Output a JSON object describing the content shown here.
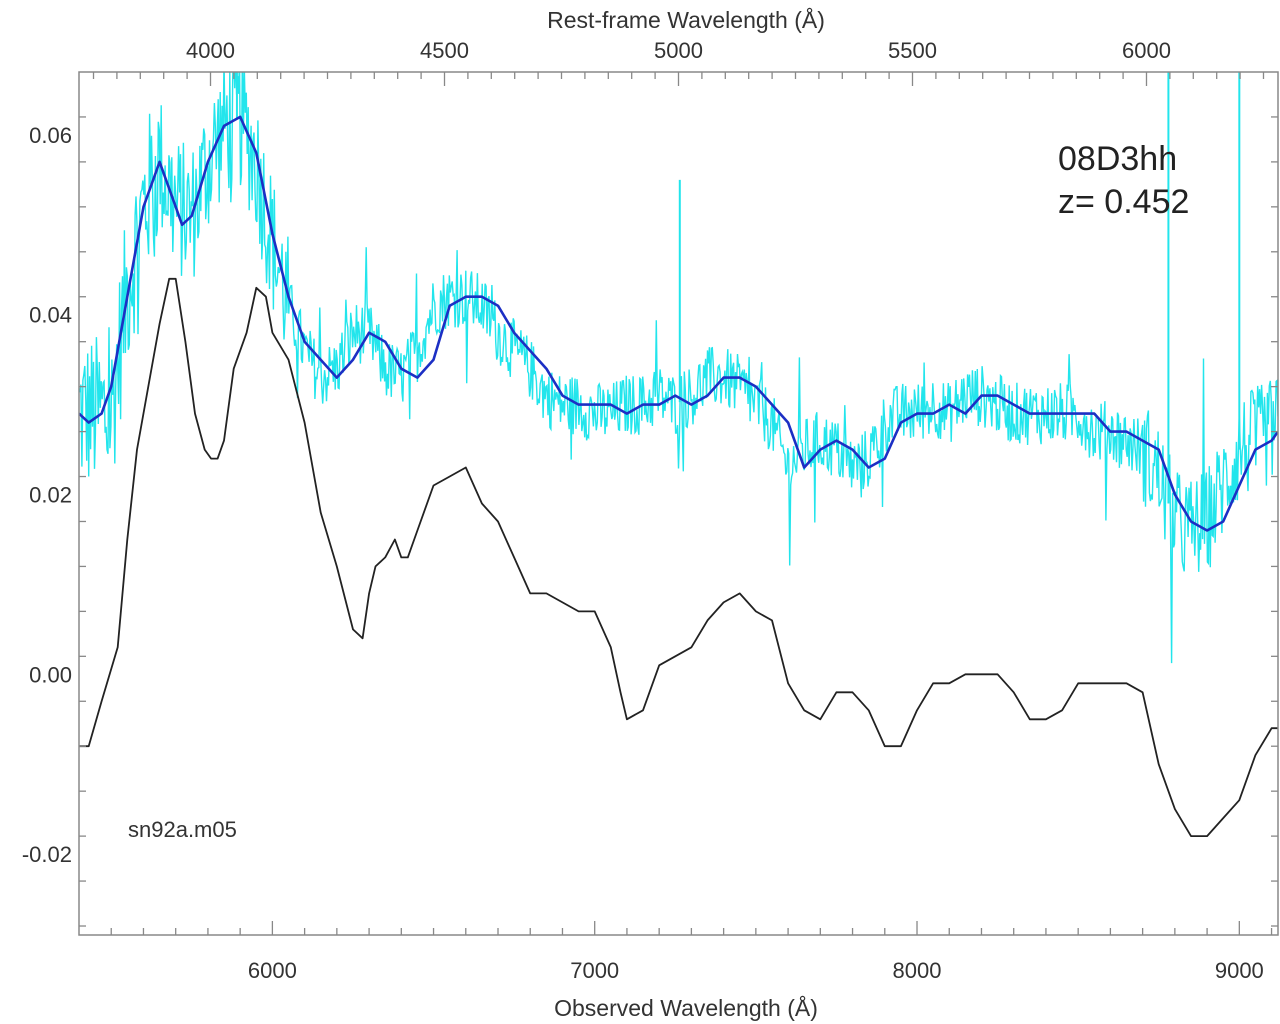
{
  "chart_data": {
    "type": "line",
    "title": "",
    "xlabel": "Observed Wavelength (Å)",
    "x2label": "Rest-frame Wavelength (Å)",
    "ylabel": "",
    "xlim": [
      5400,
      9120
    ],
    "ylim": [
      -0.029,
      0.067
    ],
    "x_ticks": [
      6000,
      7000,
      8000,
      9000
    ],
    "x_tick_labels": [
      "6000",
      "7000",
      "8000",
      "9000"
    ],
    "x2_ticks": [
      4000,
      4500,
      5000,
      5500,
      6000
    ],
    "x2_tick_labels": [
      "4000",
      "4500",
      "5000",
      "5500",
      "6000"
    ],
    "y_ticks": [
      0.06,
      0.04,
      0.02,
      0.0,
      -0.02
    ],
    "y_tick_labels": [
      "0.06",
      "0.04",
      "0.02",
      "0.00",
      "-0.02"
    ],
    "redshift": 0.452,
    "annotations": {
      "object": "08D3hh",
      "redshift_text": "z= 0.452",
      "template": "sn92a.m05"
    },
    "colors": {
      "raw": "#22e5ec",
      "smoothed": "#1c2fc4",
      "template": "#222222",
      "axis": "#888888"
    },
    "series": [
      {
        "role": "raw-spectrum",
        "x": [
          5400,
          5500,
          5550,
          5600,
          5650,
          5700,
          5750,
          5800,
          5850,
          5900,
          5950,
          6000,
          6050,
          6100,
          6150,
          6200,
          6250,
          6300,
          6350,
          6400,
          6450,
          6500,
          6550,
          6600,
          6650,
          6700,
          6750,
          6800,
          6850,
          6900,
          6950,
          7000,
          7050,
          7100,
          7150,
          7200,
          7250,
          7300,
          7350,
          7400,
          7450,
          7500,
          7550,
          7600,
          7650,
          7700,
          7750,
          7800,
          7850,
          7900,
          7950,
          8000,
          8050,
          8100,
          8150,
          8200,
          8250,
          8300,
          8350,
          8400,
          8450,
          8500,
          8550,
          8600,
          8650,
          8700,
          8750,
          8800,
          8850,
          8900,
          8950,
          9000,
          9050,
          9100,
          9120
        ],
        "y": [
          0.029,
          0.029,
          0.043,
          0.052,
          0.057,
          0.052,
          0.051,
          0.057,
          0.061,
          0.062,
          0.057,
          0.048,
          0.041,
          0.036,
          0.033,
          0.034,
          0.038,
          0.038,
          0.034,
          0.033,
          0.036,
          0.041,
          0.042,
          0.042,
          0.041,
          0.038,
          0.036,
          0.034,
          0.031,
          0.03,
          0.03,
          0.029,
          0.029,
          0.03,
          0.03,
          0.031,
          0.03,
          0.031,
          0.033,
          0.033,
          0.032,
          0.03,
          0.028,
          0.023,
          0.025,
          0.026,
          0.025,
          0.023,
          0.024,
          0.028,
          0.029,
          0.029,
          0.03,
          0.029,
          0.031,
          0.031,
          0.03,
          0.029,
          0.029,
          0.029,
          0.029,
          0.029,
          0.027,
          0.027,
          0.026,
          0.025,
          0.022,
          0.017,
          0.016,
          0.017,
          0.021,
          0.025,
          0.026,
          0.027,
          0.028
        ]
      },
      {
        "role": "smoothed-spectrum",
        "x": [
          5400,
          5430,
          5470,
          5500,
          5550,
          5600,
          5650,
          5700,
          5720,
          5750,
          5800,
          5850,
          5900,
          5950,
          6000,
          6050,
          6100,
          6150,
          6200,
          6250,
          6300,
          6350,
          6400,
          6450,
          6500,
          6550,
          6600,
          6650,
          6700,
          6750,
          6800,
          6850,
          6900,
          6950,
          7000,
          7050,
          7100,
          7150,
          7200,
          7250,
          7300,
          7350,
          7400,
          7450,
          7500,
          7550,
          7600,
          7650,
          7700,
          7750,
          7800,
          7850,
          7900,
          7950,
          8000,
          8050,
          8100,
          8150,
          8200,
          8250,
          8300,
          8350,
          8400,
          8450,
          8500,
          8550,
          8600,
          8650,
          8700,
          8750,
          8800,
          8850,
          8900,
          8950,
          9000,
          9050,
          9100,
          9120
        ],
        "y": [
          0.029,
          0.028,
          0.029,
          0.032,
          0.042,
          0.052,
          0.057,
          0.052,
          0.05,
          0.051,
          0.057,
          0.061,
          0.062,
          0.058,
          0.049,
          0.042,
          0.037,
          0.035,
          0.033,
          0.035,
          0.038,
          0.037,
          0.034,
          0.033,
          0.035,
          0.041,
          0.042,
          0.042,
          0.041,
          0.038,
          0.036,
          0.034,
          0.031,
          0.03,
          0.03,
          0.03,
          0.029,
          0.03,
          0.03,
          0.031,
          0.03,
          0.031,
          0.033,
          0.033,
          0.032,
          0.03,
          0.028,
          0.023,
          0.025,
          0.026,
          0.025,
          0.023,
          0.024,
          0.028,
          0.029,
          0.029,
          0.03,
          0.029,
          0.031,
          0.031,
          0.03,
          0.029,
          0.029,
          0.029,
          0.029,
          0.029,
          0.027,
          0.027,
          0.026,
          0.025,
          0.02,
          0.017,
          0.016,
          0.017,
          0.021,
          0.025,
          0.026,
          0.027
        ]
      },
      {
        "role": "template-spectrum",
        "x": [
          5400,
          5430,
          5470,
          5520,
          5550,
          5580,
          5620,
          5650,
          5680,
          5700,
          5730,
          5760,
          5790,
          5810,
          5830,
          5850,
          5880,
          5920,
          5950,
          5980,
          6000,
          6050,
          6100,
          6150,
          6200,
          6250,
          6280,
          6300,
          6320,
          6350,
          6380,
          6400,
          6420,
          6450,
          6500,
          6550,
          6600,
          6650,
          6700,
          6750,
          6800,
          6850,
          6900,
          6950,
          7000,
          7050,
          7080,
          7100,
          7150,
          7200,
          7250,
          7300,
          7350,
          7400,
          7450,
          7500,
          7550,
          7600,
          7650,
          7700,
          7750,
          7800,
          7850,
          7900,
          7950,
          8000,
          8050,
          8100,
          8150,
          8200,
          8250,
          8300,
          8350,
          8400,
          8450,
          8500,
          8550,
          8600,
          8650,
          8700,
          8750,
          8800,
          8850,
          8900,
          8950,
          9000,
          9050,
          9100,
          9120
        ],
        "y": [
          -0.008,
          -0.008,
          -0.003,
          0.003,
          0.015,
          0.025,
          0.033,
          0.039,
          0.044,
          0.044,
          0.037,
          0.029,
          0.025,
          0.024,
          0.024,
          0.026,
          0.034,
          0.038,
          0.043,
          0.042,
          0.038,
          0.035,
          0.028,
          0.018,
          0.012,
          0.005,
          0.004,
          0.009,
          0.012,
          0.013,
          0.015,
          0.013,
          0.013,
          0.016,
          0.021,
          0.022,
          0.023,
          0.019,
          0.017,
          0.013,
          0.009,
          0.009,
          0.008,
          0.007,
          0.007,
          0.003,
          -0.002,
          -0.005,
          -0.004,
          0.001,
          0.002,
          0.003,
          0.006,
          0.008,
          0.009,
          0.007,
          0.006,
          -0.001,
          -0.004,
          -0.005,
          -0.002,
          -0.002,
          -0.004,
          -0.008,
          -0.008,
          -0.004,
          -0.001,
          -0.001,
          0.0,
          0.0,
          0.0,
          -0.002,
          -0.005,
          -0.005,
          -0.004,
          -0.001,
          -0.001,
          -0.001,
          -0.001,
          -0.002,
          -0.01,
          -0.015,
          -0.018,
          -0.018,
          -0.016,
          -0.014,
          -0.009,
          -0.006,
          -0.006
        ]
      }
    ]
  }
}
